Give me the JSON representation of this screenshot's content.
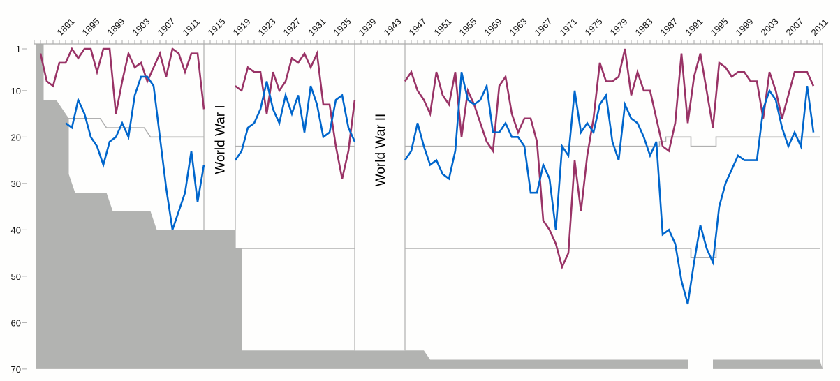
{
  "chart_data": {
    "type": "line",
    "title": "",
    "xlabel": "",
    "ylabel": "",
    "xlim": [
      1887,
      2012
    ],
    "ylim": [
      70,
      0
    ],
    "y_inverted": true,
    "grid": false,
    "legend": "none",
    "x_tick_labels": [
      "1891",
      "1895",
      "1899",
      "1903",
      "1907",
      "1911",
      "1915",
      "1919",
      "1923",
      "1927",
      "1931",
      "1935",
      "1939",
      "1943",
      "1947",
      "1951",
      "1955",
      "1959",
      "1963",
      "1967",
      "1971",
      "1975",
      "1979",
      "1983",
      "1987",
      "1991",
      "1995",
      "1999",
      "2003",
      "2007",
      "2011"
    ],
    "y_tick_labels": [
      "1",
      "10",
      "20",
      "30",
      "40",
      "50",
      "60",
      "70"
    ],
    "y_tick_values": [
      1,
      10,
      20,
      30,
      40,
      50,
      60,
      70
    ],
    "annotations": [
      "World War I",
      "World War II"
    ],
    "colors": {
      "purple": "#993366",
      "blue": "#0066cc",
      "grey_fill": "#b2b3b1",
      "grey_line": "#b0b0b0"
    },
    "series": [
      {
        "name": "purple",
        "segments": [
          {
            "start": 1888,
            "values": [
              2,
              8,
              9,
              4,
              4,
              1,
              3,
              1,
              1,
              6,
              1,
              1,
              15,
              8,
              2,
              5,
              4,
              8,
              5,
              2,
              7,
              1,
              2,
              6,
              2,
              2,
              14
            ]
          },
          {
            "start": 1919,
            "values": [
              9,
              10,
              5,
              6,
              6,
              15,
              6,
              10,
              8,
              3,
              4,
              2,
              5,
              2,
              13,
              13,
              22,
              29,
              23,
              12
            ]
          },
          {
            "start": 1946,
            "values": [
              8,
              6,
              10,
              12,
              15,
              6,
              11,
              13,
              6,
              20,
              10,
              13,
              17,
              21,
              23,
              9,
              7,
              15,
              19,
              16,
              16,
              21,
              38,
              40,
              43,
              48,
              45,
              25,
              36,
              24,
              16,
              4,
              8,
              8,
              7,
              1,
              11,
              6,
              10,
              10,
              16,
              22,
              23,
              17,
              2,
              17,
              7,
              2,
              10,
              18,
              4,
              5,
              7,
              6,
              6,
              8,
              8,
              16,
              6,
              10,
              16,
              11,
              6,
              6,
              6,
              9
            ]
          }
        ]
      },
      {
        "name": "blue",
        "segments": [
          {
            "start": 1892,
            "values": [
              17,
              18,
              12,
              15,
              20,
              22,
              26,
              21,
              20,
              17,
              20,
              11,
              7,
              7,
              9,
              20,
              31,
              40,
              36,
              32,
              23,
              34,
              26
            ]
          },
          {
            "start": 1919,
            "values": [
              25,
              23,
              18,
              17,
              14,
              8,
              14,
              17,
              11,
              15,
              11,
              19,
              9,
              13,
              20,
              19,
              12,
              11,
              18,
              21
            ]
          },
          {
            "start": 1946,
            "values": [
              25,
              23,
              17,
              22,
              26,
              25,
              28,
              29,
              23,
              6,
              12,
              13,
              12,
              9,
              19,
              19,
              17,
              20,
              20,
              22,
              32,
              32,
              26,
              29,
              40,
              22,
              24,
              10,
              19,
              17,
              19,
              13,
              11,
              21,
              25,
              13,
              16,
              17,
              20,
              24,
              21,
              41,
              40,
              43,
              51,
              56,
              47,
              39,
              44,
              47,
              35,
              30,
              27,
              24,
              25,
              25,
              25,
              14,
              10,
              12,
              18,
              22,
              19,
              22,
              9,
              19
            ]
          }
        ]
      }
    ],
    "division_lines": [
      {
        "name": "division-1-boundary",
        "steps": [
          [
            1891.5,
            16
          ],
          [
            1897.5,
            16
          ],
          [
            1898.5,
            18
          ],
          [
            1904.5,
            18
          ],
          [
            1905.5,
            20
          ],
          [
            1914,
            20
          ],
          [
            1919,
            22
          ],
          [
            1938,
            22
          ],
          [
            1946,
            22
          ],
          [
            1986.5,
            22
          ],
          [
            1986.5,
            21
          ],
          [
            1987.5,
            21
          ],
          [
            1987.5,
            20
          ],
          [
            1991.5,
            20
          ],
          [
            1991.5,
            22
          ],
          [
            1995.5,
            22
          ],
          [
            1995.5,
            20
          ],
          [
            2012,
            20
          ]
        ]
      },
      {
        "name": "division-2-boundary",
        "steps": [
          [
            1919,
            44
          ],
          [
            1938,
            44
          ],
          [
            1946,
            44
          ],
          [
            1991.5,
            44
          ],
          [
            1991.5,
            46
          ],
          [
            1995.5,
            46
          ],
          [
            1995.5,
            44
          ],
          [
            2012,
            44
          ]
        ]
      }
    ],
    "grey_area_top": [
      [
        1887,
        0
      ],
      [
        1888.5,
        0
      ],
      [
        1888.5,
        12
      ],
      [
        1890.5,
        12
      ],
      [
        1892.5,
        16
      ],
      [
        1892.5,
        28
      ],
      [
        1893.5,
        32
      ],
      [
        1898.5,
        32
      ],
      [
        1899.5,
        36
      ],
      [
        1905.5,
        36
      ],
      [
        1906.5,
        40
      ],
      [
        1919,
        40
      ],
      [
        1919,
        44
      ],
      [
        1920,
        44
      ],
      [
        1920,
        66
      ],
      [
        1949,
        66
      ],
      [
        1950,
        68
      ],
      [
        1991,
        68
      ],
      [
        1991,
        70
      ],
      [
        1995,
        70
      ],
      [
        1995,
        68
      ],
      [
        2012,
        68
      ]
    ],
    "war_bands": [
      {
        "label": "World War I",
        "from": 1914,
        "to": 1919
      },
      {
        "label": "World War II",
        "from": 1938,
        "to": 1946
      }
    ]
  }
}
